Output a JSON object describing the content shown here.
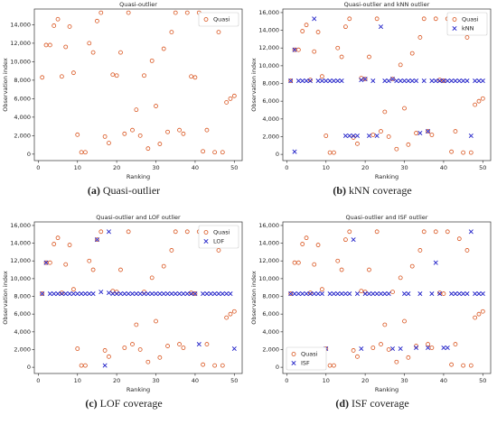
{
  "chart_data": [
    {
      "type": "scatter",
      "title": "Quasi-outlier",
      "xlabel": "Ranking",
      "ylabel": "Observation index",
      "caption_label": "(a)",
      "caption": "Quasi-outlier",
      "xlim": [
        -1,
        52
      ],
      "ylim": [
        -700,
        15700
      ],
      "xticks": [
        0,
        10,
        20,
        30,
        40,
        50
      ],
      "yticks": [
        0,
        {
          "value": 2000,
          "label": "2,000"
        },
        {
          "value": 4000,
          "label": "4,000"
        },
        {
          "value": 6000,
          "label": "6,000"
        },
        {
          "value": 8000,
          "label": "8,000"
        },
        {
          "value": 10000,
          "label": "10,000"
        },
        {
          "value": 12000,
          "label": "12,000"
        },
        {
          "value": 14000,
          "label": "14,000"
        }
      ],
      "legend": "upper right",
      "series": [
        {
          "name": "Quasi",
          "color": "#d9541e",
          "marker": "o",
          "x": [
            1,
            2,
            3,
            4,
            5,
            6,
            7,
            8,
            9,
            10,
            11,
            12,
            13,
            14,
            15,
            16,
            17,
            18,
            19,
            20,
            21,
            22,
            23,
            24,
            25,
            26,
            27,
            28,
            29,
            30,
            31,
            32,
            33,
            34,
            35,
            36,
            37,
            38,
            39,
            40,
            41,
            42,
            43,
            44,
            45,
            46,
            47,
            48,
            49,
            50
          ],
          "values": [
            8300,
            11800,
            11800,
            13900,
            14600,
            8400,
            11600,
            13800,
            8800,
            2100,
            200,
            200,
            12000,
            11000,
            14400,
            15300,
            1900,
            1200,
            8600,
            8500,
            11000,
            2200,
            15300,
            2600,
            4800,
            2000,
            8500,
            600,
            10100,
            5200,
            1100,
            11400,
            2400,
            13200,
            15300,
            2600,
            2200,
            15300,
            8400,
            8300,
            15300,
            300,
            2600,
            14500,
            200,
            13200,
            200,
            5600,
            6000,
            6300
          ]
        }
      ]
    },
    {
      "type": "scatter",
      "title": "Quasi-outlier and kNN outlier",
      "xlabel": "Ranking",
      "ylabel": "Observation index",
      "caption_label": "(b)",
      "caption": "kNN coverage",
      "xlim": [
        -1,
        52
      ],
      "ylim": [
        -700,
        16400
      ],
      "xticks": [
        0,
        10,
        20,
        30,
        40,
        50
      ],
      "yticks": [
        0,
        {
          "value": 2000,
          "label": "2,000"
        },
        {
          "value": 4000,
          "label": "4,000"
        },
        {
          "value": 6000,
          "label": "6,000"
        },
        {
          "value": 8000,
          "label": "8,000"
        },
        {
          "value": 10000,
          "label": "10,000"
        },
        {
          "value": 12000,
          "label": "12,000"
        },
        {
          "value": 14000,
          "label": "14,000"
        },
        {
          "value": 16000,
          "label": "16,000"
        }
      ],
      "legend": "upper right",
      "series": [
        {
          "name": "Quasi",
          "color": "#d9541e",
          "marker": "o",
          "x": [
            1,
            2,
            3,
            4,
            5,
            6,
            7,
            8,
            9,
            10,
            11,
            12,
            13,
            14,
            15,
            16,
            17,
            18,
            19,
            20,
            21,
            22,
            23,
            24,
            25,
            26,
            27,
            28,
            29,
            30,
            31,
            32,
            33,
            34,
            35,
            36,
            37,
            38,
            39,
            40,
            41,
            42,
            43,
            44,
            45,
            46,
            47,
            48,
            49,
            50
          ],
          "values": [
            8300,
            11800,
            11800,
            13900,
            14600,
            8400,
            11600,
            13800,
            8800,
            2100,
            200,
            200,
            12000,
            11000,
            14400,
            15300,
            1900,
            1200,
            8600,
            8500,
            11000,
            2200,
            15300,
            2600,
            4800,
            2000,
            8500,
            600,
            10100,
            5200,
            1100,
            11400,
            2400,
            13200,
            15300,
            2600,
            2200,
            15300,
            8400,
            8300,
            15300,
            300,
            2600,
            14500,
            200,
            13200,
            200,
            5600,
            6000,
            6300
          ]
        },
        {
          "name": "kNN",
          "color": "#2020c8",
          "marker": "x",
          "x": [
            1,
            2,
            2,
            3,
            4,
            5,
            6,
            7,
            8,
            9,
            10,
            11,
            12,
            13,
            14,
            15,
            16,
            17,
            18,
            19,
            20,
            21,
            22,
            23,
            24,
            25,
            26,
            27,
            28,
            29,
            30,
            31,
            32,
            33,
            34,
            35,
            36,
            37,
            38,
            39,
            40,
            41,
            42,
            43,
            44,
            45,
            46,
            47,
            48,
            49,
            50
          ],
          "values": [
            8300,
            11800,
            300,
            8300,
            8300,
            8300,
            8300,
            15300,
            8300,
            8300,
            8300,
            8300,
            8300,
            8300,
            8300,
            2100,
            2100,
            2100,
            2100,
            8400,
            8500,
            2100,
            8300,
            2100,
            14400,
            8300,
            8300,
            8500,
            8300,
            8300,
            8300,
            8300,
            8300,
            8300,
            2400,
            8300,
            2600,
            8300,
            8300,
            8300,
            8300,
            8300,
            8300,
            8300,
            8300,
            8300,
            8300,
            2100,
            8300,
            8300,
            8300
          ]
        }
      ]
    },
    {
      "type": "scatter",
      "title": "Quasi-outlier and LOF outlier",
      "xlabel": "Ranking",
      "ylabel": "Observation index",
      "caption_label": "(c)",
      "caption": "LOF coverage",
      "xlim": [
        -1,
        52
      ],
      "ylim": [
        -700,
        16400
      ],
      "xticks": [
        0,
        10,
        20,
        30,
        40,
        50
      ],
      "yticks": [
        0,
        {
          "value": 2000,
          "label": "2,000"
        },
        {
          "value": 4000,
          "label": "4,000"
        },
        {
          "value": 6000,
          "label": "6,000"
        },
        {
          "value": 8000,
          "label": "8,000"
        },
        {
          "value": 10000,
          "label": "10,000"
        },
        {
          "value": 12000,
          "label": "12,000"
        },
        {
          "value": 14000,
          "label": "14,000"
        },
        {
          "value": 16000,
          "label": "16,000"
        }
      ],
      "legend": "upper right",
      "series": [
        {
          "name": "Quasi",
          "color": "#d9541e",
          "marker": "o",
          "x": [
            1,
            2,
            3,
            4,
            5,
            6,
            7,
            8,
            9,
            10,
            11,
            12,
            13,
            14,
            15,
            16,
            17,
            18,
            19,
            20,
            21,
            22,
            23,
            24,
            25,
            26,
            27,
            28,
            29,
            30,
            31,
            32,
            33,
            34,
            35,
            36,
            37,
            38,
            39,
            40,
            41,
            42,
            43,
            44,
            45,
            46,
            47,
            48,
            49,
            50
          ],
          "values": [
            8300,
            11800,
            11800,
            13900,
            14600,
            8400,
            11600,
            13800,
            8800,
            2100,
            200,
            200,
            12000,
            11000,
            14400,
            15300,
            1900,
            1200,
            8600,
            8500,
            11000,
            2200,
            15300,
            2600,
            4800,
            2000,
            8500,
            600,
            10100,
            5200,
            1100,
            11400,
            2400,
            13200,
            15300,
            2600,
            2200,
            15300,
            8400,
            8300,
            15300,
            300,
            2600,
            14500,
            200,
            13200,
            200,
            5600,
            6000,
            6300
          ]
        },
        {
          "name": "LOF",
          "color": "#2020c8",
          "marker": "x",
          "x": [
            1,
            2,
            3,
            4,
            5,
            6,
            7,
            8,
            9,
            10,
            11,
            12,
            13,
            14,
            15,
            16,
            17,
            18,
            18,
            19,
            20,
            21,
            22,
            23,
            24,
            25,
            26,
            27,
            28,
            29,
            30,
            31,
            32,
            33,
            34,
            35,
            36,
            37,
            38,
            39,
            40,
            41,
            42,
            43,
            44,
            45,
            46,
            47,
            48,
            49,
            50
          ],
          "values": [
            8300,
            11800,
            8300,
            8300,
            8300,
            8300,
            8300,
            8300,
            8300,
            8300,
            8300,
            8300,
            8300,
            8300,
            14400,
            8500,
            200,
            15300,
            8400,
            8300,
            8300,
            8300,
            8300,
            8300,
            8300,
            8300,
            8300,
            8300,
            8300,
            8300,
            8300,
            8300,
            8300,
            8300,
            8300,
            8300,
            8300,
            8300,
            8300,
            8300,
            8300,
            2600,
            8300,
            8300,
            8300,
            8300,
            8300,
            8300,
            8300,
            8300,
            2100
          ]
        }
      ]
    },
    {
      "type": "scatter",
      "title": "Quasi-outlier and ISF outlier",
      "xlabel": "Ranking",
      "ylabel": "Observation index",
      "caption_label": "(d)",
      "caption": "ISF coverage",
      "xlim": [
        -1,
        52
      ],
      "ylim": [
        -700,
        16400
      ],
      "xticks": [
        0,
        10,
        20,
        30,
        40,
        50
      ],
      "yticks": [
        0,
        {
          "value": 2000,
          "label": "2,000"
        },
        {
          "value": 4000,
          "label": "4,000"
        },
        {
          "value": 6000,
          "label": "6,000"
        },
        {
          "value": 8000,
          "label": "8,000"
        },
        {
          "value": 10000,
          "label": "10,000"
        },
        {
          "value": 12000,
          "label": "12,000"
        },
        {
          "value": 14000,
          "label": "14,000"
        },
        {
          "value": 16000,
          "label": "16,000"
        }
      ],
      "legend": "lower left",
      "series": [
        {
          "name": "Quasi",
          "color": "#d9541e",
          "marker": "o",
          "x": [
            1,
            2,
            3,
            4,
            5,
            6,
            7,
            8,
            9,
            10,
            11,
            12,
            13,
            14,
            15,
            16,
            17,
            18,
            19,
            20,
            21,
            22,
            23,
            24,
            25,
            26,
            27,
            28,
            29,
            30,
            31,
            32,
            33,
            34,
            35,
            36,
            37,
            38,
            39,
            40,
            41,
            42,
            43,
            44,
            45,
            46,
            47,
            48,
            49,
            50
          ],
          "values": [
            8300,
            11800,
            11800,
            13900,
            14600,
            8400,
            11600,
            13800,
            8800,
            2100,
            200,
            200,
            12000,
            11000,
            14400,
            15300,
            1900,
            1200,
            8600,
            8500,
            11000,
            2200,
            15300,
            2600,
            4800,
            2000,
            8500,
            600,
            10100,
            5200,
            1100,
            11400,
            2400,
            13200,
            15300,
            2600,
            2200,
            15300,
            8400,
            8300,
            15300,
            300,
            2600,
            14500,
            200,
            13200,
            200,
            5600,
            6000,
            6300
          ]
        },
        {
          "name": "ISF",
          "color": "#2020c8",
          "marker": "x",
          "x": [
            1,
            2,
            3,
            4,
            5,
            6,
            7,
            8,
            9,
            10,
            11,
            12,
            13,
            14,
            15,
            16,
            17,
            18,
            19,
            20,
            21,
            22,
            23,
            24,
            25,
            26,
            27,
            29,
            30,
            31,
            33,
            34,
            36,
            37,
            38,
            39,
            40,
            41,
            42,
            43,
            44,
            45,
            46,
            47,
            48,
            49,
            50
          ],
          "values": [
            8300,
            8300,
            8300,
            8300,
            8300,
            8300,
            8300,
            8300,
            8300,
            2100,
            8300,
            8300,
            8300,
            8300,
            8300,
            8300,
            14400,
            8300,
            2100,
            8300,
            8300,
            8300,
            8300,
            8300,
            8300,
            8300,
            2100,
            2100,
            8300,
            8300,
            2200,
            8300,
            2200,
            8300,
            11800,
            8300,
            2200,
            2200,
            8300,
            8300,
            8300,
            8300,
            8300,
            15300,
            8300,
            8300,
            8300
          ]
        }
      ]
    }
  ]
}
